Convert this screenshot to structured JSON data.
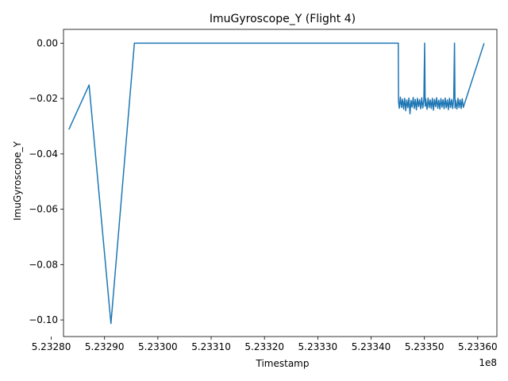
{
  "chart_data": {
    "type": "line",
    "title": "ImuGyroscope_Y (Flight 4)",
    "xlabel": "Timestamp",
    "ylabel": "ImuGyroscope_Y",
    "x_offset_label": "1e8",
    "xlim": [
      523282300,
      523363600
    ],
    "ylim": [
      -0.106,
      0.005
    ],
    "grid": false,
    "legend": "none",
    "line_color": "#1f77b4",
    "x_ticks": [
      523280000,
      523290000,
      523300000,
      523310000,
      523320000,
      523330000,
      523340000,
      523350000,
      523360000
    ],
    "x_tick_labels": [
      "5.23280",
      "5.23290",
      "5.23300",
      "5.23310",
      "5.23320",
      "5.23330",
      "5.23340",
      "5.23350",
      "5.23360"
    ],
    "y_ticks": [
      0.0,
      -0.02,
      -0.04,
      -0.06,
      -0.08,
      -0.1
    ],
    "y_tick_labels": [
      "0.00",
      "−0.02",
      "−0.04",
      "−0.06",
      "−0.08",
      "−0.10"
    ],
    "series": [
      {
        "x": [
          523283300,
          523287100,
          523291200,
          523295600,
          523345100,
          523345150,
          523345300,
          523345500,
          523345700,
          523345900,
          523346100,
          523346300,
          523346500,
          523346700,
          523346900,
          523347100,
          523347300,
          523347500,
          523347700,
          523347900,
          523348100,
          523348300,
          523348500,
          523348700,
          523348900,
          523349100,
          523349300,
          523349500,
          523349700,
          523349900,
          523350050,
          523350150,
          523350250,
          523350500,
          523350700,
          523350900,
          523351100,
          523351300,
          523351500,
          523351700,
          523351900,
          523352100,
          523352300,
          523352500,
          523352700,
          523352900,
          523353100,
          523353300,
          523353500,
          523353700,
          523353900,
          523354100,
          523354300,
          523354500,
          523354700,
          523354900,
          523355100,
          523355300,
          523355500,
          523355650,
          523355750,
          523355850,
          523356100,
          523356300,
          523356500,
          523356700,
          523356900,
          523357100,
          523357300,
          523361200
        ],
        "y": [
          -0.0312,
          -0.0151,
          -0.1013,
          0.0,
          0.0,
          -0.021,
          -0.0235,
          -0.0195,
          -0.0232,
          -0.0202,
          -0.0238,
          -0.0199,
          -0.0244,
          -0.0205,
          -0.0233,
          -0.0198,
          -0.0255,
          -0.0207,
          -0.0231,
          -0.0196,
          -0.0236,
          -0.0203,
          -0.0241,
          -0.0199,
          -0.0229,
          -0.0204,
          -0.0237,
          -0.0197,
          -0.0234,
          -0.0206,
          0.0,
          -0.0228,
          -0.0201,
          -0.0239,
          -0.0198,
          -0.0233,
          -0.0205,
          -0.0236,
          -0.0199,
          -0.0242,
          -0.0203,
          -0.0229,
          -0.0197,
          -0.0235,
          -0.0206,
          -0.0238,
          -0.02,
          -0.0231,
          -0.0204,
          -0.0237,
          -0.0198,
          -0.0233,
          -0.0205,
          -0.024,
          -0.0199,
          -0.0232,
          -0.0203,
          -0.0236,
          -0.0201,
          0.0,
          -0.0234,
          -0.0206,
          -0.0238,
          -0.0199,
          -0.0233,
          -0.0204,
          -0.0236,
          -0.0201,
          -0.0232,
          0.0
        ]
      }
    ]
  }
}
